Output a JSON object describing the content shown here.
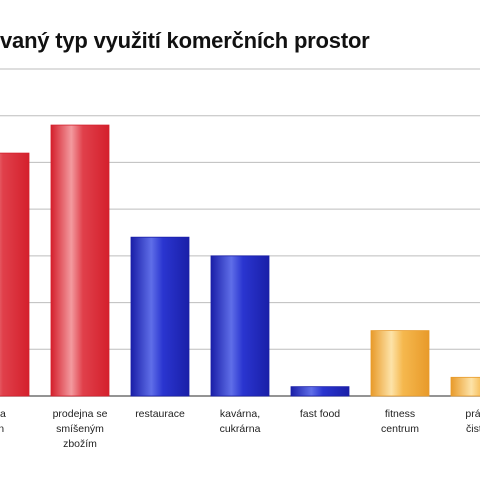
{
  "chart_data": {
    "type": "bar",
    "title": "vaný typ využití komerčních prostor",
    "xlabel": "",
    "ylabel": "",
    "ylim": [
      0,
      7
    ],
    "grid": true,
    "categories": [
      [
        "na",
        "in"
      ],
      [
        "prodejna se",
        "smíšeným",
        "zbožím"
      ],
      [
        "restaurace"
      ],
      [
        "kavárna,",
        "cukrárna"
      ],
      [
        "fast food"
      ],
      [
        "fitness",
        "centrum"
      ],
      [
        "prádel",
        "čistírn"
      ]
    ],
    "values": [
      5.2,
      5.8,
      3.4,
      3.0,
      0.2,
      1.4,
      0.4
    ],
    "bar_colors": [
      "red",
      "red",
      "blue",
      "blue",
      "blue",
      "yellow",
      "yellow"
    ],
    "colors": {
      "red": {
        "dark": "#d4202c",
        "mid": "#e0404b",
        "light": "#f39a9f"
      },
      "blue": {
        "dark": "#1a1fa8",
        "mid": "#2a35d0",
        "light": "#5f6ee8"
      },
      "yellow": {
        "dark": "#e89a2a",
        "mid": "#f5b84e",
        "light": "#fde3a8"
      },
      "grid": "#bdbdbd",
      "axis": "#555555"
    }
  }
}
